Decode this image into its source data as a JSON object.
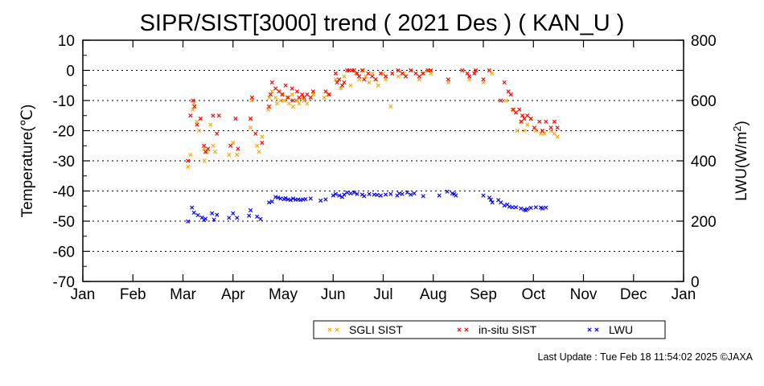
{
  "chart_data": {
    "type": "scatter",
    "title": "SIPR/SIST[3000] trend ( 2021 Des ) ( KAN_U )",
    "ylabel": "Temperature(℃)",
    "y2label": "LWU(W/m",
    "y2label_sup": "2",
    "y2label_end": ")",
    "ylim": [
      -70,
      10
    ],
    "y2lim": [
      0,
      800
    ],
    "yticks": [
      "10",
      "0",
      "-10",
      "-20",
      "-30",
      "-40",
      "-50",
      "-60",
      "-70"
    ],
    "y2ticks": [
      "800",
      "600",
      "400",
      "200",
      "0"
    ],
    "x_categories": [
      "Jan",
      "Feb",
      "Mar",
      "Apr",
      "May",
      "Jun",
      "Jul",
      "Aug",
      "Sep",
      "Oct",
      "Nov",
      "Dec",
      "Jan"
    ],
    "grid": "horizontal dotted",
    "legend_position": "bottom-right",
    "marker": "×",
    "series": [
      {
        "name": "SGLI SIST",
        "color": "#ffa500",
        "axis": "left",
        "x_unit": "month",
        "points": [
          [
            2.1,
            -32
          ],
          [
            2.15,
            -28
          ],
          [
            2.2,
            -13
          ],
          [
            2.22,
            -11
          ],
          [
            2.28,
            -17
          ],
          [
            2.32,
            -20
          ],
          [
            2.42,
            -26
          ],
          [
            2.43,
            -30
          ],
          [
            2.48,
            -27
          ],
          [
            2.55,
            -18
          ],
          [
            2.6,
            -25
          ],
          [
            2.64,
            -27
          ],
          [
            2.92,
            -28
          ],
          [
            3.0,
            -24
          ],
          [
            3.08,
            -28
          ],
          [
            3.35,
            -19
          ],
          [
            3.37,
            -10
          ],
          [
            3.48,
            -25
          ],
          [
            3.52,
            -27
          ],
          [
            3.58,
            -22
          ],
          [
            3.7,
            -13
          ],
          [
            3.72,
            -9
          ],
          [
            3.78,
            -7
          ],
          [
            3.85,
            -9
          ],
          [
            3.88,
            -11
          ],
          [
            3.95,
            -10
          ],
          [
            4.0,
            -8
          ],
          [
            4.02,
            -10
          ],
          [
            4.08,
            -9
          ],
          [
            4.12,
            -11
          ],
          [
            4.18,
            -8
          ],
          [
            4.2,
            -12
          ],
          [
            4.28,
            -10
          ],
          [
            4.32,
            -11
          ],
          [
            4.38,
            -9
          ],
          [
            4.42,
            -10
          ],
          [
            4.48,
            -11
          ],
          [
            4.55,
            -9
          ],
          [
            4.6,
            -8
          ],
          [
            4.82,
            -9
          ],
          [
            4.9,
            -8
          ],
          [
            5.05,
            -3
          ],
          [
            5.15,
            -6
          ],
          [
            5.22,
            -2
          ],
          [
            5.35,
            -5
          ],
          [
            5.45,
            -1
          ],
          [
            5.52,
            -3
          ],
          [
            5.6,
            0
          ],
          [
            5.65,
            -2
          ],
          [
            5.72,
            -4
          ],
          [
            5.78,
            -1
          ],
          [
            5.85,
            -3
          ],
          [
            5.9,
            -5
          ],
          [
            6.0,
            -1
          ],
          [
            6.05,
            -3
          ],
          [
            6.15,
            -12
          ],
          [
            6.3,
            -2
          ],
          [
            6.42,
            -1
          ],
          [
            6.55,
            0
          ],
          [
            6.72,
            -3
          ],
          [
            6.78,
            -1
          ],
          [
            6.88,
            0
          ],
          [
            6.95,
            -1
          ],
          [
            7.3,
            -4
          ],
          [
            7.58,
            0
          ],
          [
            7.72,
            -3
          ],
          [
            7.85,
            0
          ],
          [
            8.0,
            -4
          ],
          [
            8.12,
            0
          ],
          [
            8.17,
            -1
          ],
          [
            8.45,
            -10
          ],
          [
            8.58,
            -13
          ],
          [
            8.68,
            -20
          ],
          [
            8.75,
            -17
          ],
          [
            8.82,
            -20
          ],
          [
            8.88,
            -18
          ],
          [
            8.95,
            -16
          ],
          [
            9.05,
            -20
          ],
          [
            9.15,
            -21
          ],
          [
            9.22,
            -21
          ],
          [
            9.35,
            -20
          ],
          [
            9.42,
            -21
          ],
          [
            9.48,
            -22
          ]
        ]
      },
      {
        "name": "in-situ SIST",
        "color": "#ff0000",
        "axis": "left",
        "x_unit": "month",
        "points": [
          [
            2.1,
            -30
          ],
          [
            2.15,
            -15
          ],
          [
            2.2,
            -10
          ],
          [
            2.23,
            -12
          ],
          [
            2.28,
            -18
          ],
          [
            2.35,
            -16
          ],
          [
            2.42,
            -25
          ],
          [
            2.45,
            -27
          ],
          [
            2.5,
            -26
          ],
          [
            2.6,
            -15
          ],
          [
            2.68,
            -21
          ],
          [
            2.72,
            -15
          ],
          [
            2.95,
            -25
          ],
          [
            3.05,
            -16
          ],
          [
            3.1,
            -26
          ],
          [
            3.35,
            -16
          ],
          [
            3.38,
            -9
          ],
          [
            3.45,
            -21
          ],
          [
            3.58,
            -24
          ],
          [
            3.72,
            -12
          ],
          [
            3.75,
            -8
          ],
          [
            3.78,
            -4
          ],
          [
            3.85,
            -6
          ],
          [
            3.92,
            -7
          ],
          [
            3.98,
            -8
          ],
          [
            4.05,
            -5
          ],
          [
            4.1,
            -9
          ],
          [
            4.18,
            -6
          ],
          [
            4.2,
            -10
          ],
          [
            4.28,
            -7
          ],
          [
            4.32,
            -9
          ],
          [
            4.38,
            -8
          ],
          [
            4.42,
            -9
          ],
          [
            4.48,
            -8
          ],
          [
            4.55,
            -9
          ],
          [
            4.6,
            -7
          ],
          [
            4.85,
            -7
          ],
          [
            4.92,
            -8
          ],
          [
            5.05,
            -1
          ],
          [
            5.08,
            -4
          ],
          [
            5.12,
            -3
          ],
          [
            5.18,
            -5
          ],
          [
            5.22,
            -4
          ],
          [
            5.28,
            0
          ],
          [
            5.32,
            0
          ],
          [
            5.38,
            0
          ],
          [
            5.42,
            0
          ],
          [
            5.48,
            -1
          ],
          [
            5.52,
            -2
          ],
          [
            5.58,
            0
          ],
          [
            5.62,
            -3
          ],
          [
            5.7,
            -1
          ],
          [
            5.78,
            -2
          ],
          [
            5.85,
            -3
          ],
          [
            5.95,
            -1
          ],
          [
            6.05,
            -2
          ],
          [
            6.18,
            -1
          ],
          [
            6.3,
            0
          ],
          [
            6.38,
            -1
          ],
          [
            6.45,
            -2
          ],
          [
            6.55,
            0
          ],
          [
            6.65,
            -1
          ],
          [
            6.72,
            -2
          ],
          [
            6.8,
            -1
          ],
          [
            6.9,
            0
          ],
          [
            6.95,
            0
          ],
          [
            7.3,
            -3
          ],
          [
            7.58,
            0
          ],
          [
            7.68,
            -1
          ],
          [
            7.72,
            -2
          ],
          [
            7.82,
            -1
          ],
          [
            7.85,
            0
          ],
          [
            8.0,
            -3
          ],
          [
            8.12,
            0
          ],
          [
            8.35,
            -10
          ],
          [
            8.42,
            -4
          ],
          [
            8.5,
            -7
          ],
          [
            8.55,
            -8
          ],
          [
            8.6,
            -13
          ],
          [
            8.65,
            -14
          ],
          [
            8.72,
            -13
          ],
          [
            8.76,
            -17
          ],
          [
            8.78,
            -15
          ],
          [
            8.82,
            -16
          ],
          [
            8.88,
            -15
          ],
          [
            8.95,
            -16
          ],
          [
            9.02,
            -19
          ],
          [
            9.12,
            -17
          ],
          [
            9.18,
            -20
          ],
          [
            9.25,
            -17
          ],
          [
            9.35,
            -19
          ],
          [
            9.42,
            -17
          ],
          [
            9.48,
            -19
          ]
        ]
      },
      {
        "name": "LWU",
        "color": "#0000ff",
        "axis": "right",
        "x_unit": "month",
        "points": [
          [
            2.1,
            199
          ],
          [
            2.18,
            245
          ],
          [
            2.22,
            228
          ],
          [
            2.3,
            220
          ],
          [
            2.38,
            212
          ],
          [
            2.42,
            204
          ],
          [
            2.45,
            208
          ],
          [
            2.58,
            226
          ],
          [
            2.62,
            205
          ],
          [
            2.68,
            221
          ],
          [
            2.92,
            211
          ],
          [
            3.0,
            226
          ],
          [
            3.08,
            211
          ],
          [
            3.32,
            218
          ],
          [
            3.35,
            236
          ],
          [
            3.48,
            215
          ],
          [
            3.55,
            207
          ],
          [
            3.72,
            262
          ],
          [
            3.78,
            265
          ],
          [
            3.85,
            280
          ],
          [
            3.9,
            278
          ],
          [
            3.95,
            275
          ],
          [
            4.02,
            273
          ],
          [
            4.05,
            276
          ],
          [
            4.1,
            272
          ],
          [
            4.15,
            270
          ],
          [
            4.2,
            275
          ],
          [
            4.25,
            271
          ],
          [
            4.3,
            272
          ],
          [
            4.35,
            270
          ],
          [
            4.4,
            272
          ],
          [
            4.45,
            273
          ],
          [
            4.55,
            275
          ],
          [
            4.75,
            268
          ],
          [
            4.85,
            272
          ],
          [
            5.0,
            285
          ],
          [
            5.05,
            290
          ],
          [
            5.12,
            285
          ],
          [
            5.18,
            280
          ],
          [
            5.22,
            288
          ],
          [
            5.28,
            295
          ],
          [
            5.35,
            292
          ],
          [
            5.42,
            295
          ],
          [
            5.48,
            290
          ],
          [
            5.58,
            288
          ],
          [
            5.62,
            283
          ],
          [
            5.72,
            290
          ],
          [
            5.82,
            288
          ],
          [
            5.88,
            287
          ],
          [
            5.95,
            285
          ],
          [
            6.05,
            288
          ],
          [
            6.15,
            290
          ],
          [
            6.28,
            285
          ],
          [
            6.32,
            292
          ],
          [
            6.38,
            290
          ],
          [
            6.48,
            295
          ],
          [
            6.55,
            288
          ],
          [
            6.62,
            292
          ],
          [
            6.8,
            283
          ],
          [
            7.12,
            285
          ],
          [
            7.28,
            298
          ],
          [
            7.38,
            292
          ],
          [
            7.42,
            290
          ],
          [
            7.45,
            285
          ],
          [
            8.0,
            285
          ],
          [
            8.12,
            278
          ],
          [
            8.15,
            271
          ],
          [
            8.18,
            262
          ],
          [
            8.3,
            270
          ],
          [
            8.35,
            262
          ],
          [
            8.42,
            252
          ],
          [
            8.48,
            255
          ],
          [
            8.52,
            248
          ],
          [
            8.58,
            246
          ],
          [
            8.65,
            246
          ],
          [
            8.75,
            242
          ],
          [
            8.82,
            238
          ],
          [
            8.85,
            236
          ],
          [
            8.88,
            240
          ],
          [
            8.95,
            244
          ],
          [
            9.05,
            246
          ],
          [
            9.15,
            245
          ],
          [
            9.18,
            242
          ],
          [
            9.25,
            245
          ]
        ]
      }
    ]
  },
  "footer": {
    "last_update": "Last Update : Tue Feb 18 11:54:02 2025  ©JAXA"
  }
}
